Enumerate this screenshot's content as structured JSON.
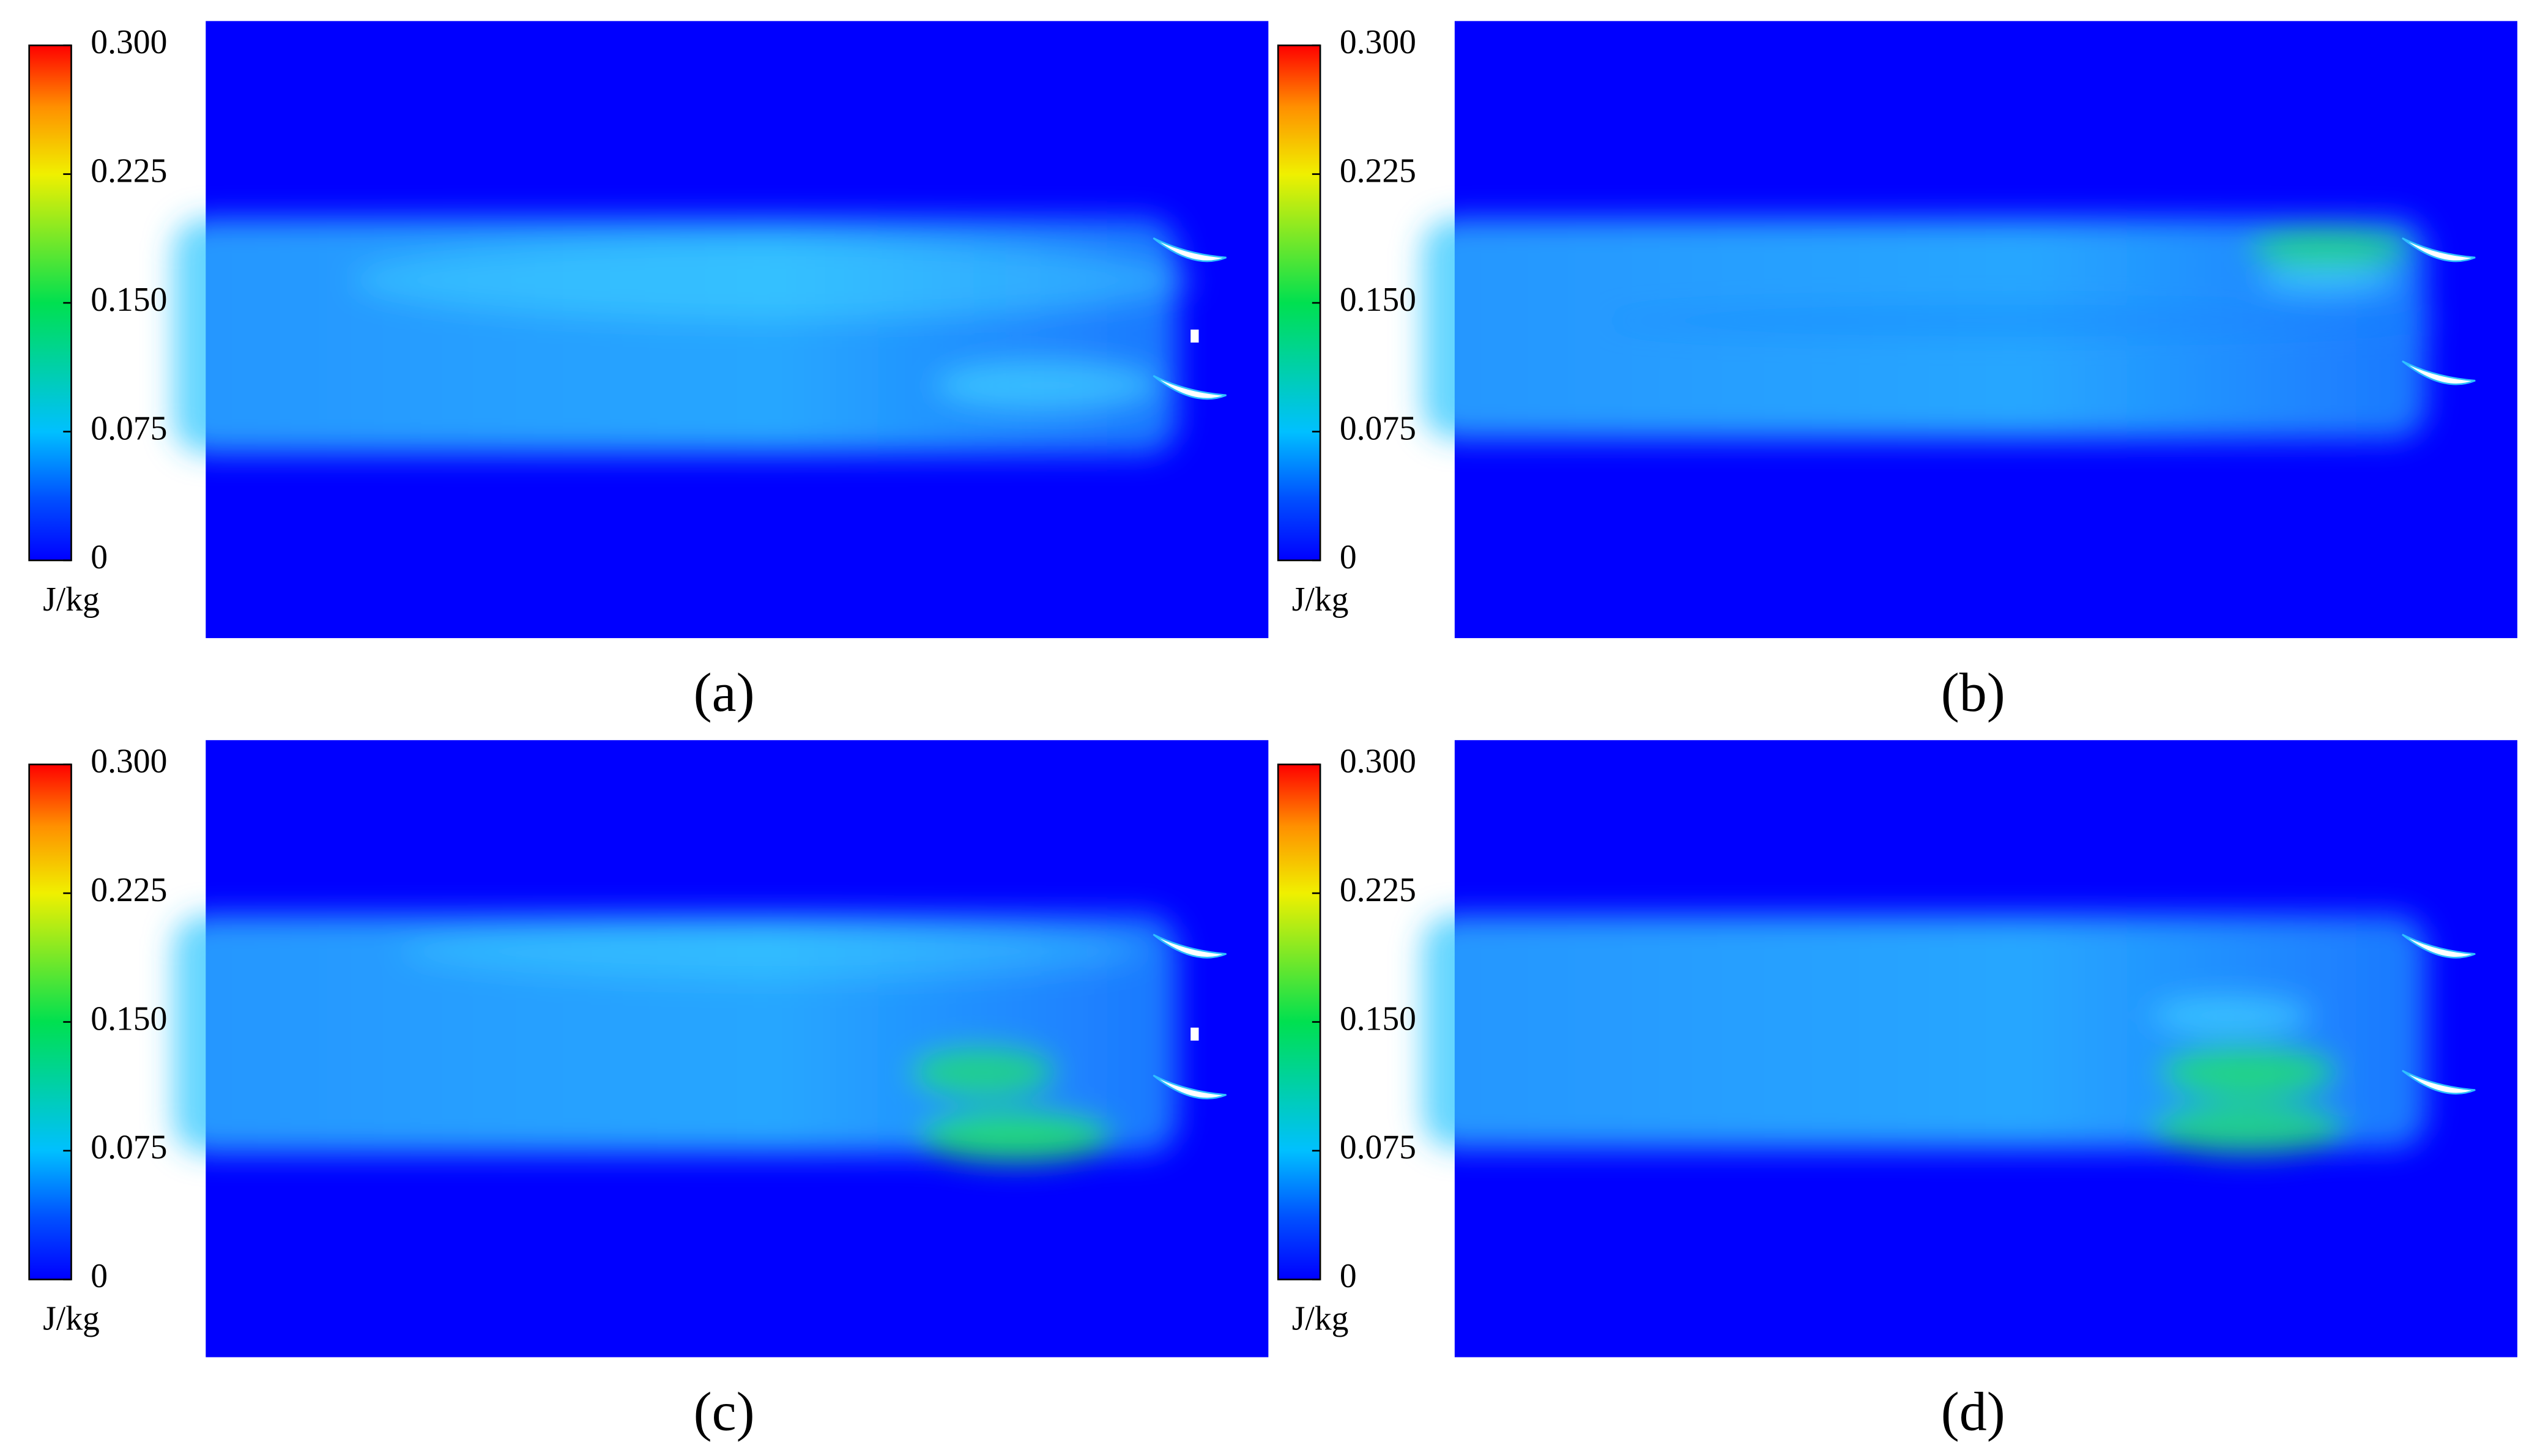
{
  "chart_data": [
    {
      "type": "contour",
      "caption": "(a)",
      "colorbar": {
        "lim": [
          0,
          0.3
        ],
        "ticks": [
          0,
          0.075,
          {
            "value": 0.15,
            "label": "0.150"
          },
          0.225,
          {
            "value": 0.3,
            "label": "0.300"
          }
        ],
        "unit": "J/kg"
      }
    },
    {
      "type": "contour",
      "caption": "(b)",
      "colorbar": {
        "lim": [
          0,
          0.3
        ],
        "ticks": [
          0,
          0.075,
          {
            "value": 0.15,
            "label": "0.150"
          },
          0.225,
          {
            "value": 0.3,
            "label": "0.300"
          }
        ],
        "unit": "J/kg"
      }
    },
    {
      "type": "contour",
      "caption": "(c)",
      "colorbar": {
        "lim": [
          0,
          0.3
        ],
        "ticks": [
          0,
          0.075,
          {
            "value": 0.15,
            "label": "0.150"
          },
          0.225,
          {
            "value": 0.3,
            "label": "0.300"
          }
        ],
        "unit": "J/kg"
      }
    },
    {
      "type": "contour",
      "caption": "(d)",
      "colorbar": {
        "lim": [
          0,
          0.3
        ],
        "ticks": [
          0,
          0.075,
          {
            "value": 0.15,
            "label": "0.150"
          },
          0.225,
          {
            "value": 0.3,
            "label": "0.300"
          }
        ],
        "unit": "J/kg"
      }
    }
  ]
}
